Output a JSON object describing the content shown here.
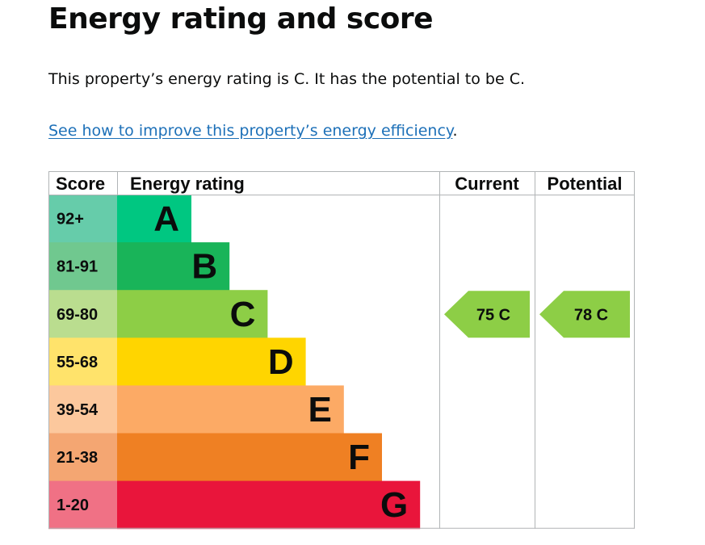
{
  "page": {
    "title": "Energy rating and score",
    "summary": "This property’s energy rating is C. It has the potential to be C.",
    "improve_link": "See how to improve this property’s energy efficiency",
    "improve_link_suffix": "."
  },
  "chart_data": {
    "type": "bar",
    "headers": {
      "score": "Score",
      "rating": "Energy rating",
      "current": "Current",
      "potential": "Potential"
    },
    "bands": [
      {
        "score": "92+",
        "letter": "A",
        "color": "#00c781",
        "score_bg": "#66ccaa"
      },
      {
        "score": "81-91",
        "letter": "B",
        "color": "#19b459",
        "score_bg": "#70c88f"
      },
      {
        "score": "69-80",
        "letter": "C",
        "color": "#8dce46",
        "score_bg": "#badd8f"
      },
      {
        "score": "55-68",
        "letter": "D",
        "color": "#ffd500",
        "score_bg": "#ffe36b"
      },
      {
        "score": "39-54",
        "letter": "E",
        "color": "#fcaa65",
        "score_bg": "#fcc89d"
      },
      {
        "score": "21-38",
        "letter": "F",
        "color": "#ef8023",
        "score_bg": "#f4a672"
      },
      {
        "score": "1-20",
        "letter": "G",
        "color": "#e9153b",
        "score_bg": "#f07185"
      }
    ],
    "current": {
      "value": 75,
      "band": "C",
      "label": "75  C",
      "color": "#8dce46"
    },
    "potential": {
      "value": 78,
      "band": "C",
      "label": "78  C",
      "color": "#8dce46"
    }
  }
}
